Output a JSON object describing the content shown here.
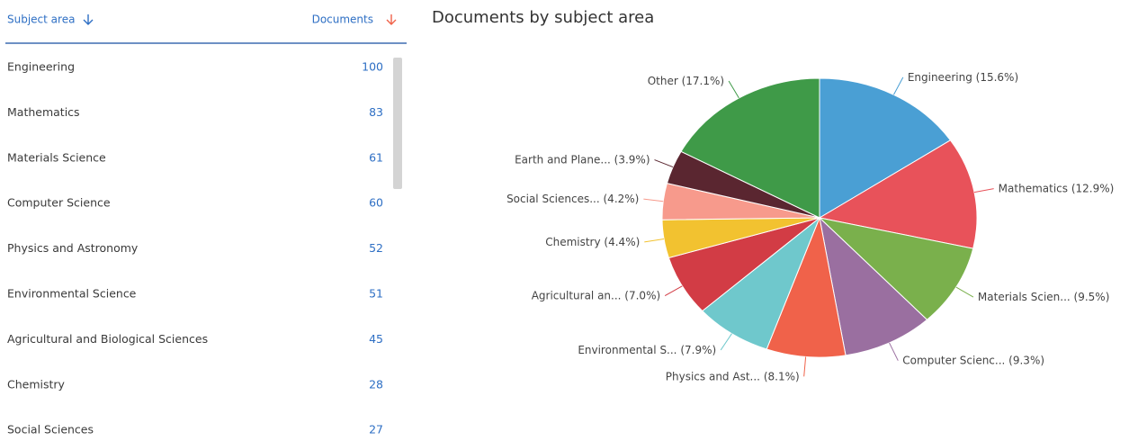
{
  "table": {
    "headers": [
      "Subject area",
      "Documents"
    ],
    "rows": [
      [
        "Engineering",
        "100"
      ],
      [
        "Mathematics",
        "83"
      ],
      [
        "Materials Science",
        "61"
      ],
      [
        "Computer Science",
        "60"
      ],
      [
        "Physics and Astronomy",
        "52"
      ],
      [
        "Environmental Science",
        "51"
      ],
      [
        "Agricultural and Biological Sciences",
        "45"
      ],
      [
        "Chemistry",
        "28"
      ],
      [
        "Social Sciences",
        "27"
      ]
    ]
  },
  "chart_data": {
    "type": "pie",
    "title": "Documents by subject area",
    "categories": [
      "Engineering",
      "Mathematics",
      "Materials Scien...",
      "Computer Scienc...",
      "Physics and Ast...",
      "Environmental S...",
      "Agricultural an...",
      "Chemistry",
      "Social Sciences...",
      "Earth and Plane...",
      "Other"
    ],
    "values": [
      15.6,
      12.9,
      9.5,
      9.3,
      8.1,
      7.9,
      7.0,
      4.4,
      4.2,
      3.9,
      17.1
    ],
    "value_labels": [
      "(15.6%)",
      "(12.9%)",
      "(9.5%)",
      "(9.3%)",
      "(8.1%)",
      "(7.9%)",
      "(7.0%)",
      "(4.4%)",
      "(4.2%)",
      "(3.9%)",
      "(17.1%)"
    ],
    "colors": [
      "#4a9fd4",
      "#e8525a",
      "#7ab04c",
      "#9a6fa0",
      "#f0624a",
      "#6fc8cc",
      "#d23c45",
      "#f2c230",
      "#f79a8c",
      "#5a2630",
      "#3f9a48"
    ]
  }
}
